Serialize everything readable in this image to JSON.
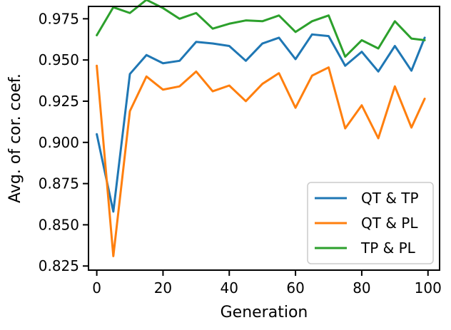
{
  "chart_data": {
    "type": "line",
    "title": "",
    "xlabel": "Generation",
    "ylabel": "Avg. of cor. coef.",
    "xlim": [
      -2.5,
      103.5
    ],
    "ylim": [
      0.8225,
      0.9825
    ],
    "xticks": [
      0,
      20,
      40,
      60,
      80,
      100
    ],
    "xtick_labels": [
      "0",
      "20",
      "40",
      "60",
      "80",
      "100"
    ],
    "yticks": [
      0.825,
      0.85,
      0.875,
      0.9,
      0.925,
      0.95,
      0.975
    ],
    "ytick_labels": [
      "0.825",
      "0.850",
      "0.875",
      "0.900",
      "0.925",
      "0.950",
      "0.975"
    ],
    "grid": false,
    "legend_position": "lower-right",
    "x": [
      0,
      5,
      10,
      15,
      20,
      25,
      30,
      35,
      40,
      45,
      50,
      55,
      60,
      65,
      70,
      75,
      80,
      85,
      90,
      95,
      99
    ],
    "series": [
      {
        "name": "QT & TP",
        "color": "#1f77b4",
        "values": [
          0.905,
          0.858,
          0.9415,
          0.953,
          0.948,
          0.9495,
          0.961,
          0.96,
          0.9585,
          0.9495,
          0.96,
          0.9635,
          0.9505,
          0.9655,
          0.9645,
          0.9465,
          0.955,
          0.943,
          0.9585,
          0.9435,
          0.9635
        ]
      },
      {
        "name": "QT & PL",
        "color": "#ff7f0e",
        "values": [
          0.9465,
          0.831,
          0.919,
          0.94,
          0.932,
          0.934,
          0.943,
          0.931,
          0.9345,
          0.925,
          0.9355,
          0.942,
          0.921,
          0.9405,
          0.9455,
          0.9085,
          0.9225,
          0.9025,
          0.934,
          0.909,
          0.9265
        ]
      },
      {
        "name": "TP & PL",
        "color": "#2ca02c",
        "values": [
          0.965,
          0.982,
          0.9785,
          0.9865,
          0.9815,
          0.975,
          0.9785,
          0.969,
          0.972,
          0.974,
          0.9735,
          0.977,
          0.967,
          0.9735,
          0.977,
          0.952,
          0.962,
          0.957,
          0.9735,
          0.963,
          0.962
        ]
      }
    ]
  }
}
